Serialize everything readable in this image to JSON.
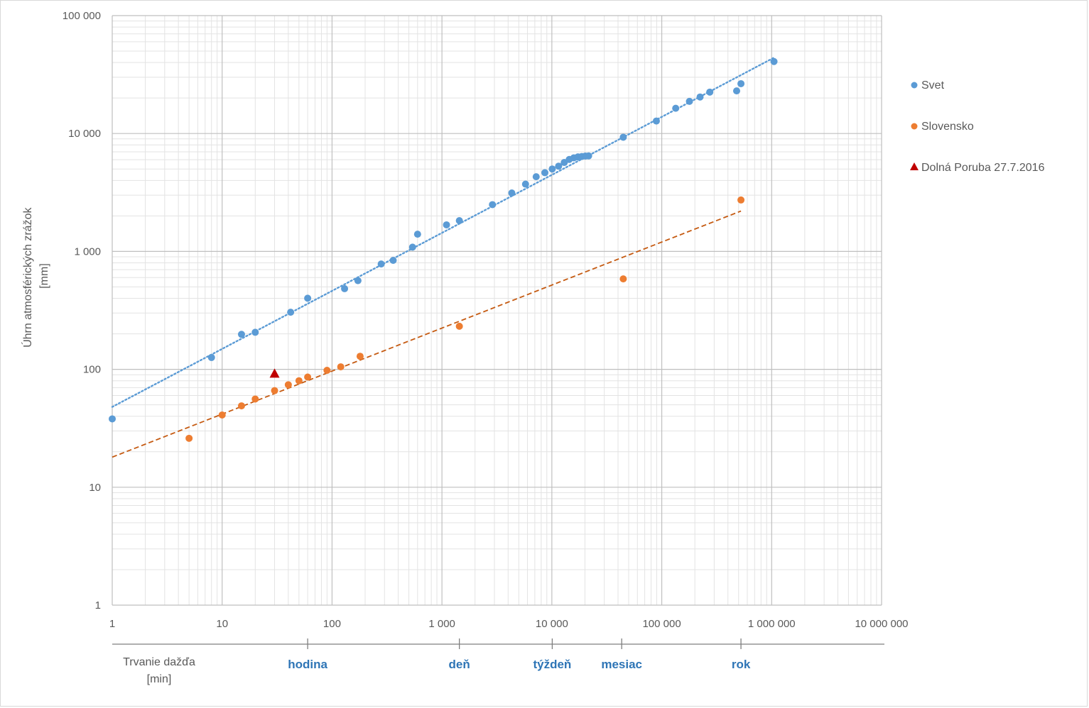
{
  "chart_data": {
    "type": "scatter",
    "x_scale": "log",
    "y_scale": "log",
    "xlim": [
      1,
      10000000
    ],
    "ylim": [
      1,
      100000
    ],
    "grid": true,
    "legend_position": "right",
    "ylabel_line1": "Úhrn atmosférických zrážok",
    "ylabel_line2": "[mm]",
    "xlabel_line1": "Trvanie dažďa",
    "xlabel_line2": "[min]",
    "x_tick_labels": [
      "1",
      "10",
      "100",
      "1 000",
      "10 000",
      "100 000",
      "1 000 000",
      "10 000 000"
    ],
    "y_tick_labels": [
      "1",
      "10",
      "100",
      "1 000",
      "10 000",
      "100 000"
    ],
    "duration_markers": [
      {
        "label": "hodina",
        "value": 60
      },
      {
        "label": "deň",
        "value": 1440
      },
      {
        "label": "týždeň",
        "value": 10080
      },
      {
        "label": "mesiac",
        "value": 43200
      },
      {
        "label": "rok",
        "value": 525600
      }
    ],
    "series": [
      {
        "name": "Svet",
        "color": "#5b9bd5",
        "marker": "circle",
        "trendline": {
          "x": [
            1,
            1050000
          ],
          "y": [
            48,
            44000
          ],
          "style": "dotted"
        },
        "x": [
          1,
          8,
          15,
          20,
          42,
          60,
          130,
          172,
          280,
          360,
          540,
          600,
          1100,
          1440,
          2880,
          4320,
          5760,
          7200,
          8640,
          10080,
          11520,
          12960,
          14400,
          15840,
          17280,
          18720,
          20160,
          21600,
          44640,
          89280,
          133920,
          178560,
          223200,
          273600,
          480000,
          525600,
          1050000
        ],
        "y": [
          38,
          126,
          198,
          206,
          305,
          401,
          483,
          565,
          782,
          840,
          1087,
          1400,
          1680,
          1825,
          2493,
          3130,
          3721,
          4301,
          4653,
          5003,
          5286,
          5678,
          6028,
          6222,
          6334,
          6383,
          6433,
          6455,
          9300,
          12767,
          16369,
          18738,
          20412,
          22454,
          22990,
          26461,
          40768
        ]
      },
      {
        "name": "Slovensko",
        "color": "#ed7d31",
        "marker": "circle",
        "trendline": {
          "x": [
            1,
            525600
          ],
          "y": [
            18,
            2200
          ],
          "style": "dashed",
          "color": "#c55a11"
        },
        "x": [
          5,
          10,
          15,
          20,
          30,
          40,
          50,
          60,
          90,
          120,
          180,
          1440,
          44640,
          525600
        ],
        "y": [
          26,
          41,
          49,
          56,
          66,
          74,
          80,
          86,
          98,
          105,
          129,
          232,
          585,
          2730
        ]
      },
      {
        "name": "Dolná Poruba 27.7.2016",
        "color": "#c00000",
        "marker": "triangle",
        "x": [
          30
        ],
        "y": [
          91
        ]
      }
    ]
  }
}
